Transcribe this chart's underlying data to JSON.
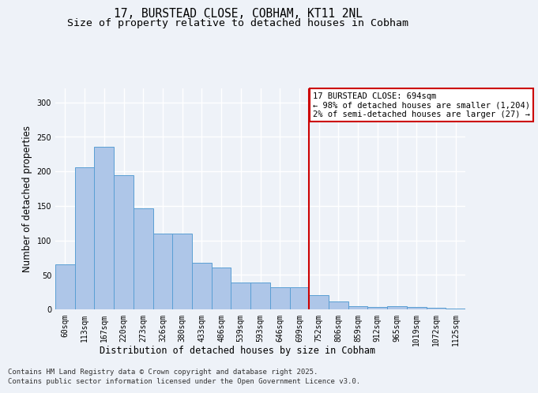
{
  "title_line1": "17, BURSTEAD CLOSE, COBHAM, KT11 2NL",
  "title_line2": "Size of property relative to detached houses in Cobham",
  "xlabel": "Distribution of detached houses by size in Cobham",
  "ylabel": "Number of detached properties",
  "footer_line1": "Contains HM Land Registry data © Crown copyright and database right 2025.",
  "footer_line2": "Contains public sector information licensed under the Open Government Licence v3.0.",
  "categories": [
    "60sqm",
    "113sqm",
    "167sqm",
    "220sqm",
    "273sqm",
    "326sqm",
    "380sqm",
    "433sqm",
    "486sqm",
    "539sqm",
    "593sqm",
    "646sqm",
    "699sqm",
    "752sqm",
    "806sqm",
    "859sqm",
    "912sqm",
    "965sqm",
    "1019sqm",
    "1072sqm",
    "1125sqm"
  ],
  "values": [
    65,
    206,
    236,
    194,
    146,
    110,
    110,
    68,
    61,
    39,
    39,
    32,
    32,
    21,
    11,
    5,
    4,
    5,
    3,
    2,
    1
  ],
  "bar_color": "#aec6e8",
  "bar_edge_color": "#5a9fd4",
  "vline_x": 12.5,
  "vline_color": "#cc0000",
  "annotation_text": "17 BURSTEAD CLOSE: 694sqm\n← 98% of detached houses are smaller (1,204)\n2% of semi-detached houses are larger (27) →",
  "ylim": [
    0,
    320
  ],
  "yticks": [
    0,
    50,
    100,
    150,
    200,
    250,
    300
  ],
  "background_color": "#eef2f8",
  "grid_color": "#ffffff",
  "title_fontsize": 10.5,
  "subtitle_fontsize": 9.5,
  "axis_label_fontsize": 8.5,
  "tick_fontsize": 7,
  "footer_fontsize": 6.5,
  "annotation_fontsize": 7.5
}
